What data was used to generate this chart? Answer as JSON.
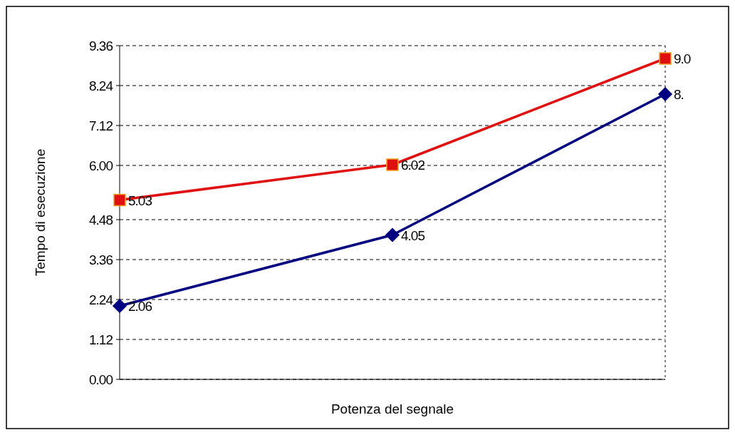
{
  "chart_data": {
    "type": "line",
    "xlabel": "Potenza del segnale",
    "ylabel": "Tempo di esecuzione",
    "categories": [
      null,
      null,
      null
    ],
    "series": [
      {
        "color": "#000080",
        "marker": "diamond",
        "values": [
          2.06,
          4.05,
          8.0
        ],
        "value_labels": [
          "2.06",
          "4.05",
          "8."
        ]
      },
      {
        "color": "#e01010",
        "marker": "square",
        "values": [
          5.03,
          6.02,
          9.0
        ],
        "value_labels": [
          "5.03",
          "6.02",
          "9.0"
        ]
      }
    ],
    "ylim": [
      0,
      9.36
    ],
    "yticks": [
      {
        "value": 0,
        "label": "0.00"
      },
      {
        "value": 1.12,
        "label": "1.12"
      },
      {
        "value": 2.24,
        "label": "2.24"
      },
      {
        "value": 3.36,
        "label": "3.36"
      },
      {
        "value": 4.48,
        "label": "4.48"
      },
      {
        "value": 6,
        "label": "6.00"
      },
      {
        "value": 7.12,
        "label": "7.12"
      },
      {
        "value": 8.24,
        "label": "8.24"
      },
      {
        "value": 9.36,
        "label": "9.36"
      }
    ],
    "grid": "y",
    "line_style": "solid"
  }
}
